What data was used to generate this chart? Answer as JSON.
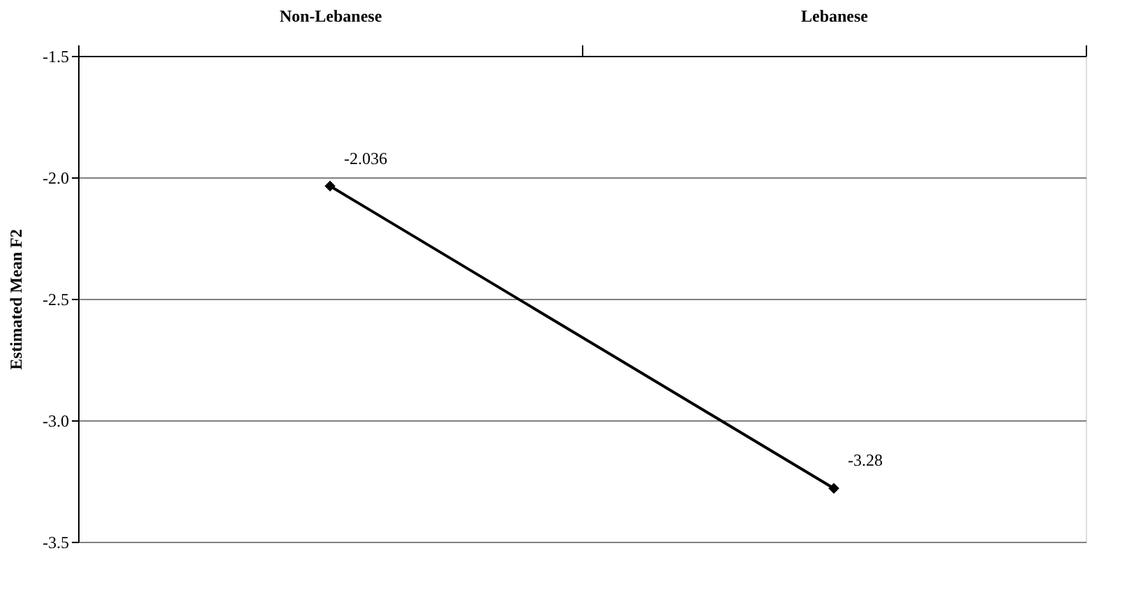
{
  "chart_data": {
    "type": "line",
    "ylabel": "Estimated Mean F2",
    "categories": [
      "Non-Lebanese",
      "Lebanese"
    ],
    "series": [
      {
        "color": "#000000",
        "values": [
          -2.036,
          -3.28
        ]
      }
    ],
    "ylim": [
      -3.5,
      -1.5
    ],
    "yticks": [
      -1.5,
      {
        "value": -2.0,
        "label": "-2.0"
      },
      -2.5,
      {
        "value": -3.0,
        "label": "-3.0"
      },
      -3.5
    ],
    "grid": "y",
    "marker": "diamond",
    "line_style": "solid",
    "data_labels": true
  }
}
